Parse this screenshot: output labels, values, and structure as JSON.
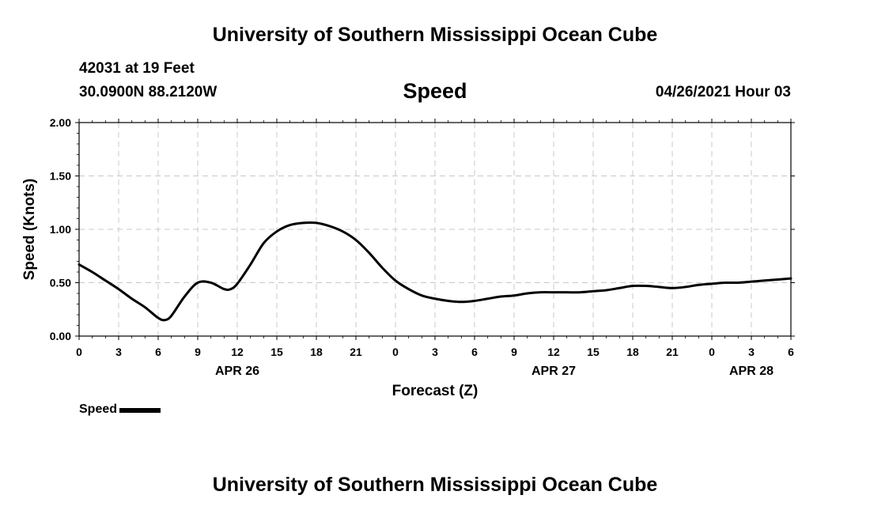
{
  "header": {
    "title": "University of Southern Mississippi Ocean Cube",
    "station": "42031 at 19 Feet",
    "coords": "30.0900N  88.2120W",
    "variable": "Speed",
    "datetime": "04/26/2021 Hour 03"
  },
  "footer": {
    "title": "University of Southern Mississippi Ocean Cube"
  },
  "legend": {
    "label": "Speed"
  },
  "chart_data": {
    "type": "line",
    "ylabel": "Speed (Knots)",
    "xlabel": "Forecast (Z)",
    "ylim": [
      0,
      2
    ],
    "xlim": [
      0,
      54
    ],
    "y_ticks": [
      "0.00",
      "0.50",
      "1.00",
      "1.50",
      "2.00"
    ],
    "x_tick_labels": [
      "0",
      "3",
      "6",
      "9",
      "12",
      "15",
      "18",
      "21",
      "0",
      "3",
      "6",
      "9",
      "12",
      "15",
      "18",
      "21",
      "0",
      "3",
      "6"
    ],
    "date_labels": [
      {
        "label": "APR 26",
        "at_hour": 12
      },
      {
        "label": "APR 27",
        "at_hour": 36
      },
      {
        "label": "APR 28",
        "at_hour": 51
      }
    ],
    "grid": true,
    "series": [
      {
        "name": "Speed",
        "color": "#000000",
        "x": [
          0,
          1,
          2,
          3,
          4,
          5,
          6,
          6.5,
          7,
          8,
          9,
          10,
          11,
          11.5,
          12,
          13,
          14,
          15,
          16,
          17,
          18,
          19,
          20,
          21,
          22,
          23,
          24,
          25,
          26,
          27,
          28,
          29,
          30,
          31,
          32,
          33,
          34,
          35,
          36,
          37,
          38,
          39,
          40,
          41,
          42,
          43,
          44,
          45,
          46,
          47,
          48,
          49,
          50,
          51,
          52,
          53,
          54
        ],
        "y": [
          0.67,
          0.6,
          0.52,
          0.44,
          0.35,
          0.27,
          0.17,
          0.15,
          0.19,
          0.37,
          0.5,
          0.5,
          0.44,
          0.44,
          0.49,
          0.67,
          0.87,
          0.98,
          1.04,
          1.06,
          1.06,
          1.03,
          0.98,
          0.9,
          0.78,
          0.64,
          0.52,
          0.44,
          0.38,
          0.35,
          0.33,
          0.32,
          0.33,
          0.35,
          0.37,
          0.38,
          0.4,
          0.41,
          0.41,
          0.41,
          0.41,
          0.42,
          0.43,
          0.45,
          0.47,
          0.47,
          0.46,
          0.45,
          0.46,
          0.48,
          0.49,
          0.5,
          0.5,
          0.51,
          0.52,
          0.53,
          0.54
        ]
      }
    ]
  }
}
